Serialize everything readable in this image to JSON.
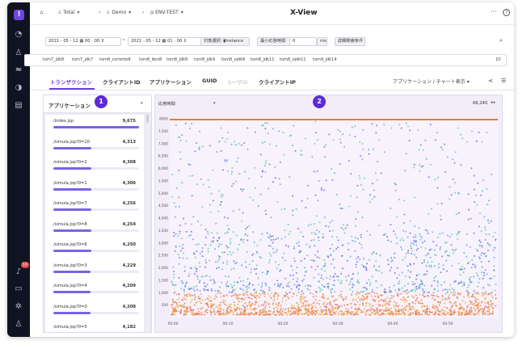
{
  "app": {
    "title": "X-View"
  },
  "breadcrumb": {
    "total": "Total",
    "demo": "Demo",
    "env": "ENV-TEST"
  },
  "sidebar": {
    "badge": "10"
  },
  "toolbar": {
    "start_date": "2021 - 05 - 12",
    "start_time": "00 : 00",
    "end_date": "2021 - 05 - 12",
    "end_time": "01 : 00",
    "target_label": "対象選択:",
    "target_value": "Instance",
    "min_time_label": "最小応答時間",
    "min_time_value": "0",
    "unit": "ms",
    "detail_search": "詳細検索条件"
  },
  "tags": {
    "items": [
      "tom7_jdk8",
      "tom7_jdk7",
      "tom8_corretto8",
      "tom8_ibm8",
      "tom8_jdk8",
      "tom8_jdk9",
      "tom8_ojdk8",
      "tom8_jdk11",
      "tom8_ojdk11",
      "tom9_jdk14"
    ],
    "count": "10"
  },
  "tabs": {
    "items": [
      "トランザクション",
      "クライアントID",
      "アプリケーション",
      "GUID",
      "ユーザID",
      "クライアントIP"
    ],
    "active": "トランザクション",
    "right_select": "アプリケーション / チャート表示"
  },
  "left_panel": {
    "title": "アプリケーション",
    "rows": [
      {
        "name": "/index.jsp",
        "value": "9,675",
        "fraction": 1.0
      },
      {
        "name": "/simula.jsp?0=10",
        "value": "4,313",
        "fraction": 0.446
      },
      {
        "name": "/simula.jsp?0=2",
        "value": "4,308",
        "fraction": 0.445
      },
      {
        "name": "/simula.jsp?0=1",
        "value": "4,306",
        "fraction": 0.445
      },
      {
        "name": "/simula.jsp?0=7",
        "value": "4,256",
        "fraction": 0.44
      },
      {
        "name": "/simula.jsp?0=8",
        "value": "4,254",
        "fraction": 0.44
      },
      {
        "name": "/simula.jsp?0=6",
        "value": "4,250",
        "fraction": 0.439
      },
      {
        "name": "/simula.jsp?0=3",
        "value": "4,229",
        "fraction": 0.437
      },
      {
        "name": "/simula.jsp?0=4",
        "value": "4,209",
        "fraction": 0.435
      },
      {
        "name": "/simula.jsp?0=0",
        "value": "4,208",
        "fraction": 0.435
      },
      {
        "name": "/simula.jsp?0=5",
        "value": "4,182",
        "fraction": 0.432
      }
    ]
  },
  "right_panel": {
    "select_label": "応答時間",
    "count": "66,240"
  },
  "callouts": {
    "one": "1",
    "two": "2"
  },
  "chart_data": {
    "type": "scatter",
    "x_ticks": [
      "00:00",
      "00:10",
      "00:20",
      "00:30",
      "00:40",
      "00:50"
    ],
    "y_ticks": [
      "500",
      "1,000",
      "1,500",
      "2,000",
      "2,500",
      "3,000",
      "3,500",
      "4,000",
      "4,500",
      "5,000",
      "5,500",
      "6,000",
      "6,500",
      "7,000",
      "7,500",
      "8000"
    ],
    "ylim": [
      0,
      8000
    ],
    "point_count": "66,240",
    "colors": [
      "#5b5fe6",
      "#4aa0e8",
      "#53c98f",
      "#f2a33a",
      "#ea6c4c",
      "#9a6ee8"
    ],
    "cap_color": "#f07a2a"
  }
}
